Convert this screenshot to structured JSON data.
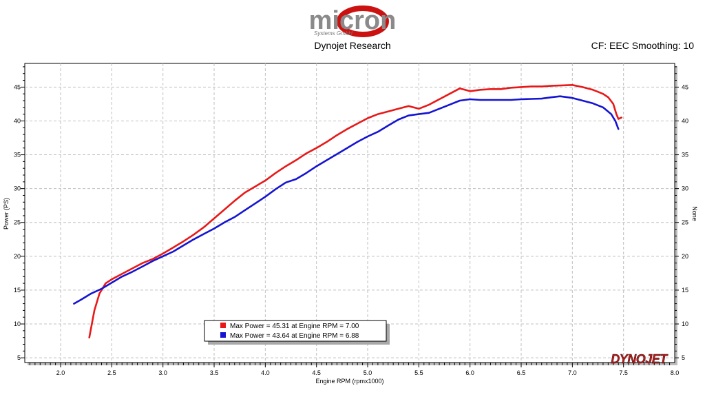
{
  "header": {
    "logo_text": "micron",
    "logo_subtext": "Systems GmbH",
    "title": "Dynojet Research",
    "settings": "CF: EEC Smoothing: 10"
  },
  "brand_watermark": "DYNOJET",
  "colors": {
    "run1": "#e81818",
    "run2": "#1414d2",
    "logo_gray": "#8a8a8a",
    "logo_red": "#cc1111",
    "grid": "#c0c0c0"
  },
  "legend": {
    "items": [
      {
        "label": "Max Power = 45.31 at Engine RPM = 7.00",
        "color": "#e81818"
      },
      {
        "label": "Max Power = 43.64 at Engine RPM = 6.88",
        "color": "#1414d2"
      }
    ]
  },
  "chart_data": {
    "type": "line",
    "xlabel": "Engine RPM (rpmx1000)",
    "ylabel": "Power (PS)",
    "ylabel_right": "None",
    "xlim": [
      1.65,
      8.0
    ],
    "ylim": [
      4.3,
      48.5
    ],
    "xticks": [
      "2.0",
      "2.5",
      "3.0",
      "3.5",
      "4.0",
      "4.5",
      "5.0",
      "5.5",
      "6.0",
      "6.5",
      "7.0",
      "7.5",
      "8.0"
    ],
    "yticks": [
      "5",
      "10",
      "15",
      "20",
      "25",
      "30",
      "35",
      "40",
      "45"
    ],
    "grid": true,
    "legend_position": "bottom-left",
    "series": [
      {
        "color": "#e81818",
        "x": [
          2.28,
          2.33,
          2.38,
          2.44,
          2.5,
          2.6,
          2.7,
          2.8,
          2.9,
          3.0,
          3.1,
          3.2,
          3.3,
          3.4,
          3.5,
          3.6,
          3.7,
          3.8,
          3.9,
          4.0,
          4.1,
          4.2,
          4.3,
          4.4,
          4.5,
          4.6,
          4.7,
          4.8,
          4.9,
          5.0,
          5.1,
          5.2,
          5.3,
          5.4,
          5.5,
          5.6,
          5.7,
          5.8,
          5.9,
          6.0,
          6.1,
          6.2,
          6.3,
          6.4,
          6.5,
          6.6,
          6.7,
          6.8,
          6.9,
          7.0,
          7.1,
          7.2,
          7.25,
          7.3,
          7.35,
          7.4,
          7.43,
          7.45,
          7.48
        ],
        "y": [
          8.0,
          12.0,
          14.5,
          16.0,
          16.6,
          17.4,
          18.2,
          19.0,
          19.6,
          20.4,
          21.3,
          22.2,
          23.2,
          24.3,
          25.6,
          26.9,
          28.2,
          29.4,
          30.3,
          31.2,
          32.3,
          33.3,
          34.2,
          35.2,
          36.0,
          36.9,
          37.9,
          38.8,
          39.6,
          40.4,
          41.0,
          41.4,
          41.8,
          42.2,
          41.8,
          42.4,
          43.2,
          44.0,
          44.8,
          44.4,
          44.6,
          44.7,
          44.7,
          44.9,
          45.0,
          45.1,
          45.1,
          45.2,
          45.25,
          45.31,
          45.0,
          44.6,
          44.3,
          44.0,
          43.5,
          42.5,
          41.0,
          40.3,
          40.5
        ]
      },
      {
        "color": "#1414d2",
        "x": [
          2.13,
          2.2,
          2.3,
          2.4,
          2.5,
          2.6,
          2.7,
          2.8,
          2.9,
          3.0,
          3.1,
          3.2,
          3.3,
          3.4,
          3.5,
          3.6,
          3.7,
          3.8,
          3.9,
          4.0,
          4.1,
          4.2,
          4.3,
          4.4,
          4.5,
          4.6,
          4.7,
          4.8,
          4.9,
          5.0,
          5.1,
          5.2,
          5.3,
          5.4,
          5.5,
          5.6,
          5.7,
          5.8,
          5.9,
          6.0,
          6.1,
          6.2,
          6.3,
          6.4,
          6.5,
          6.6,
          6.7,
          6.8,
          6.88,
          7.0,
          7.1,
          7.2,
          7.3,
          7.38,
          7.42,
          7.45
        ],
        "y": [
          13.0,
          13.6,
          14.5,
          15.2,
          16.1,
          17.0,
          17.7,
          18.5,
          19.3,
          20.0,
          20.7,
          21.6,
          22.5,
          23.3,
          24.1,
          25.0,
          25.8,
          26.8,
          27.8,
          28.8,
          29.9,
          30.9,
          31.4,
          32.3,
          33.3,
          34.2,
          35.1,
          36.0,
          36.9,
          37.7,
          38.4,
          39.3,
          40.2,
          40.8,
          41.0,
          41.2,
          41.8,
          42.4,
          43.0,
          43.2,
          43.1,
          43.1,
          43.1,
          43.1,
          43.2,
          43.25,
          43.3,
          43.5,
          43.64,
          43.4,
          43.0,
          42.6,
          42.0,
          41.0,
          40.0,
          38.8
        ]
      }
    ]
  }
}
